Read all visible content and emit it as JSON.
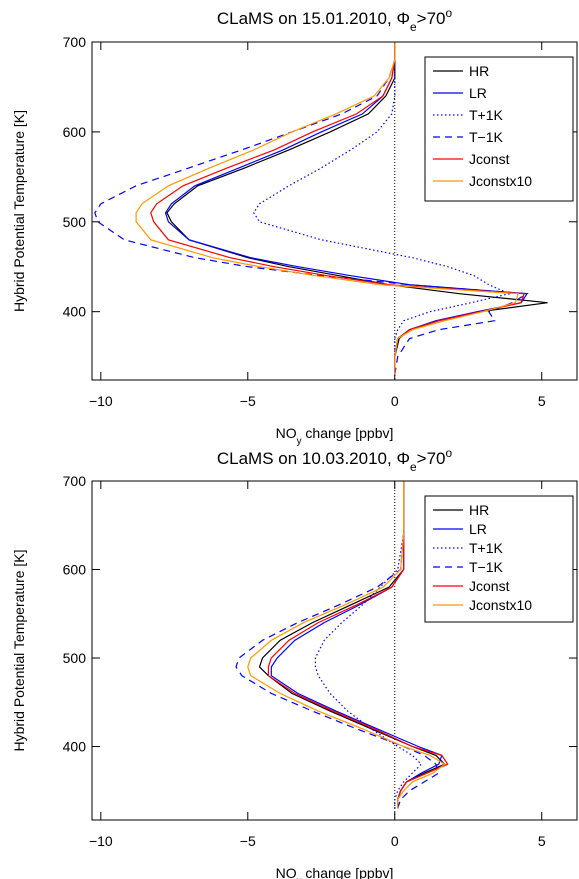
{
  "chart_data": [
    {
      "type": "line",
      "title": [
        {
          "text": "CLaMS on 15.01.2010, Φ"
        },
        {
          "text": "e",
          "shift": "sub"
        },
        {
          "text": ">70"
        },
        {
          "text": "o",
          "shift": "super"
        }
      ],
      "xlabel": [
        {
          "text": "NO"
        },
        {
          "text": "y",
          "shift": "sub"
        },
        {
          "text": " change [ppbv]"
        }
      ],
      "ylabel": "Hybrid Potential Temperature [K]",
      "xlim": [
        -10.3,
        6.2
      ],
      "ylim": [
        324,
        700
      ],
      "xticks": [
        {
          "value": -10,
          "label": "−10"
        },
        {
          "value": -5,
          "label": "−5"
        },
        0,
        5
      ],
      "yticks": [
        400,
        500,
        600,
        700
      ],
      "legend": "upper right",
      "y": [
        330,
        350,
        370,
        380,
        390,
        400,
        410,
        420,
        430,
        440,
        450,
        460,
        480,
        500,
        510,
        520,
        540,
        560,
        580,
        600,
        620,
        640,
        660,
        680,
        700
      ],
      "series": [
        {
          "name": "HR",
          "color": "#000000",
          "dash": "solid",
          "values": [
            0,
            0,
            0.15,
            0.5,
            1.5,
            2.9,
            5.2,
            2.2,
            -0.2,
            -1.9,
            -3.6,
            -5,
            -7,
            -7.6,
            -7.75,
            -7.5,
            -6.7,
            -5.1,
            -3.6,
            -2.2,
            -0.9,
            -0.3,
            0,
            0,
            0
          ]
        },
        {
          "name": "LR",
          "color": "#0000ff",
          "dash": "solid",
          "values": [
            0,
            0,
            0.1,
            0.5,
            1.4,
            2.8,
            4.3,
            4.5,
            0.5,
            -1.5,
            -3.3,
            -4.9,
            -7,
            -7.7,
            -7.8,
            -7.6,
            -6.8,
            -5.3,
            -3.8,
            -2.5,
            -1.1,
            -0.4,
            -0.1,
            0,
            0
          ]
        },
        {
          "name": "T+1K",
          "color": "#0000ff",
          "dash": "dotted",
          "values": [
            0,
            0,
            0,
            0.1,
            0.3,
            1.2,
            2.6,
            3.9,
            3.2,
            2.7,
            1.8,
            0.6,
            -2.5,
            -4.6,
            -4.8,
            -4.6,
            -3.6,
            -2.5,
            -1.5,
            -0.6,
            -0.1,
            0,
            0,
            0,
            0
          ]
        },
        {
          "name": "T−1K",
          "color": "#0000ff",
          "dash": "dashed",
          "values": [
            0,
            0.1,
            0.5,
            1.5,
            3.4,
            3.2,
            4.0,
            4.5,
            0.5,
            -2.5,
            -5.0,
            -6.8,
            -9.2,
            -10.1,
            -10.2,
            -10,
            -8.8,
            -7.0,
            -5.2,
            -3.5,
            -1.8,
            -0.6,
            -0.2,
            0,
            0
          ]
        },
        {
          "name": "Jconst",
          "color": "#ff0000",
          "dash": "solid",
          "values": [
            0,
            0,
            0.1,
            0.5,
            1.5,
            2.9,
            4.3,
            4.4,
            -0.2,
            -2.3,
            -4.1,
            -5.6,
            -7.7,
            -8.2,
            -8.3,
            -8.1,
            -7.2,
            -5.7,
            -4.1,
            -2.8,
            -1.3,
            -0.4,
            -0.1,
            0,
            0
          ]
        },
        {
          "name": "Jconstx10",
          "color": "#ff9900",
          "dash": "solid",
          "values": [
            0,
            0,
            0.1,
            0.6,
            1.7,
            3.0,
            4.1,
            4.2,
            -0.5,
            -2.7,
            -4.6,
            -6.2,
            -8.3,
            -8.8,
            -8.8,
            -8.6,
            -7.7,
            -6.3,
            -4.8,
            -3.5,
            -2,
            -0.7,
            -0.2,
            0,
            0
          ]
        }
      ]
    },
    {
      "type": "line",
      "title": [
        {
          "text": "CLaMS on 10.03.2010, Φ"
        },
        {
          "text": "e",
          "shift": "sub"
        },
        {
          "text": ">70"
        },
        {
          "text": "o",
          "shift": "super"
        }
      ],
      "xlabel": [
        {
          "text": "NO"
        },
        {
          "text": "y",
          "shift": "sub"
        },
        {
          "text": " change [ppbv]"
        }
      ],
      "ylabel": "Hybrid Potential Temperature [K]",
      "xlim": [
        -10.3,
        6.2
      ],
      "ylim": [
        317,
        700
      ],
      "xticks": [
        {
          "value": -10,
          "label": "−10"
        },
        {
          "value": -5,
          "label": "−5"
        },
        0,
        5
      ],
      "yticks": [
        400,
        500,
        600,
        700
      ],
      "legend": "upper right",
      "y": [
        330,
        340,
        350,
        360,
        370,
        380,
        390,
        400,
        420,
        440,
        460,
        480,
        490,
        500,
        520,
        540,
        560,
        580,
        600,
        640,
        700
      ],
      "series": [
        {
          "name": "HR",
          "color": "#000000",
          "dash": "solid",
          "values": [
            0.1,
            0.1,
            0.2,
            0.4,
            1.0,
            1.7,
            1.4,
            0.6,
            -0.8,
            -2.2,
            -3.5,
            -4.3,
            -4.6,
            -4.5,
            -3.9,
            -2.8,
            -1.5,
            -0.2,
            0.3,
            0.3,
            0.3
          ]
        },
        {
          "name": "LR",
          "color": "#0000ff",
          "dash": "solid",
          "values": [
            0.1,
            0.1,
            0.2,
            0.4,
            0.9,
            1.5,
            1.6,
            0.8,
            -0.6,
            -2.0,
            -3.3,
            -4.2,
            -4.2,
            -4.0,
            -3.4,
            -2.4,
            -1.2,
            -0.1,
            0.3,
            0.3,
            0.3
          ]
        },
        {
          "name": "T+1K",
          "color": "#0000ff",
          "dash": "dotted",
          "values": [
            0,
            0,
            0.1,
            0.3,
            0.6,
            0.9,
            0.6,
            0.1,
            -0.8,
            -1.6,
            -2.2,
            -2.6,
            -2.7,
            -2.7,
            -2.4,
            -1.8,
            -1.1,
            -0.5,
            0.1,
            0.3,
            0.3
          ]
        },
        {
          "name": "T−1K",
          "color": "#0000ff",
          "dash": "dashed",
          "values": [
            0.1,
            0.2,
            0.5,
            1.0,
            1.5,
            1.4,
            1.0,
            0.3,
            -1.3,
            -2.8,
            -4.2,
            -5.2,
            -5.4,
            -5.3,
            -4.5,
            -3.3,
            -1.9,
            -0.6,
            0.2,
            0.3,
            0.3
          ]
        },
        {
          "name": "Jconst",
          "color": "#ff0000",
          "dash": "solid",
          "values": [
            0.1,
            0.1,
            0.2,
            0.4,
            1.1,
            1.8,
            1.6,
            0.6,
            -0.7,
            -2.1,
            -3.4,
            -4.3,
            -4.3,
            -4.2,
            -3.6,
            -2.6,
            -1.3,
            -0.1,
            0.3,
            0.3,
            0.3
          ]
        },
        {
          "name": "Jconstx10",
          "color": "#ff9900",
          "dash": "solid",
          "values": [
            0.1,
            0.1,
            0.3,
            0.6,
            1.3,
            1.7,
            1.2,
            0.3,
            -1.1,
            -2.6,
            -3.9,
            -4.9,
            -5.0,
            -4.9,
            -4.2,
            -3.1,
            -1.7,
            -0.4,
            0.2,
            0.3,
            0.3
          ]
        }
      ]
    }
  ]
}
